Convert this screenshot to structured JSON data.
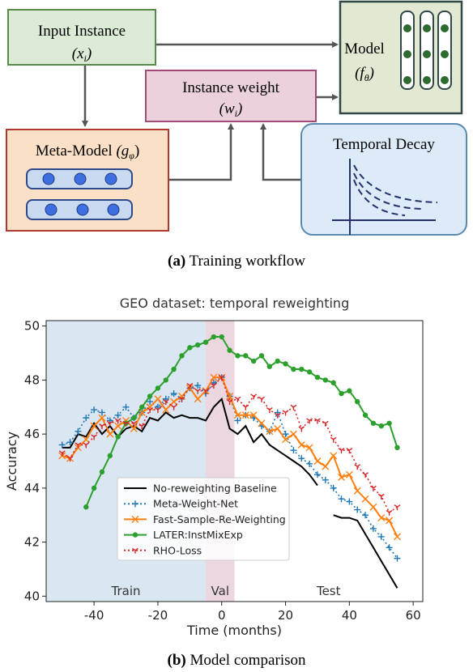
{
  "diagram": {
    "nodes": [
      {
        "label": "Input Instance",
        "math": {
          "prefix": "(x",
          "sub": "i",
          "suffix": ")"
        }
      },
      {
        "label": "Model",
        "math": {
          "prefix": "(f",
          "sub": "θ",
          "suffix": ")"
        }
      },
      {
        "label": "Instance weight",
        "math": {
          "prefix": "(w",
          "sub": "i",
          "suffix": ")"
        }
      },
      {
        "label": "Meta-Model",
        "math": {
          "prefix": "(g",
          "sub": "φ",
          "suffix": ")"
        }
      },
      {
        "label": "Temporal Decay"
      }
    ],
    "caption": {
      "tag": "(a)",
      "text": "Training workflow"
    }
  },
  "chart_data": {
    "type": "line",
    "title": "GEO dataset: temporal reweighting",
    "x_label": "Time (months)",
    "y_label": "Accuracy",
    "xlim": [
      -55,
      63
    ],
    "ylim": [
      39.8,
      50.2
    ],
    "xticks": [
      -40,
      -20,
      0,
      20,
      40,
      60
    ],
    "yticks": [
      40,
      42,
      44,
      46,
      48,
      50
    ],
    "regions": [
      {
        "label": "Train",
        "start": -55,
        "end": -5,
        "color": "#dae6f2"
      },
      {
        "label": "Val",
        "start": -5,
        "end": 4,
        "color": "#ecd6e0"
      },
      {
        "label": "Test",
        "start": 4,
        "end": 63,
        "color": "#ffffff"
      }
    ],
    "x": [
      -50,
      -47.5,
      -45,
      -42.5,
      -40,
      -37.5,
      -35,
      -32.5,
      -30,
      -27.5,
      -25,
      -22.5,
      -20,
      -17.5,
      -15,
      -12.5,
      -10,
      -7.5,
      -5,
      -2.5,
      0,
      2.5,
      5,
      7.5,
      10,
      12.5,
      15,
      17.5,
      20,
      22.5,
      25,
      27.5,
      30,
      32.5,
      35,
      37.5,
      40,
      42.5,
      45,
      47.5,
      50,
      52.5,
      55
    ],
    "series": [
      {
        "name": "No-reweighting Baseline",
        "color": "#000000",
        "dash": "solid",
        "marker": "none",
        "values": [
          45.5,
          45.5,
          46.0,
          45.9,
          46.4,
          46.0,
          46.3,
          45.9,
          46.2,
          46.3,
          46.1,
          46.6,
          46.5,
          46.8,
          46.6,
          46.7,
          46.6,
          46.6,
          46.5,
          47.0,
          47.3,
          46.2,
          46.0,
          46.3,
          45.7,
          46.0,
          45.6,
          45.4,
          45.2,
          45.0,
          44.8,
          44.5,
          44.1,
          null,
          43.0,
          42.9,
          42.9,
          42.8,
          42.3,
          41.8,
          41.3,
          40.8,
          40.3
        ]
      },
      {
        "name": "Meta-Weight-Net",
        "color": "#1f77b4",
        "dash": "dotted",
        "marker": "plus",
        "values": [
          45.6,
          45.7,
          46.1,
          46.6,
          46.9,
          46.8,
          46.5,
          46.7,
          47.0,
          46.6,
          46.8,
          47.2,
          47.0,
          47.3,
          47.5,
          47.3,
          47.7,
          47.8,
          47.5,
          47.9,
          48.1,
          47.4,
          46.5,
          46.7,
          46.6,
          46.3,
          46.1,
          46.8,
          46.0,
          45.4,
          45.1,
          44.9,
          44.5,
          44.3,
          44.0,
          43.6,
          43.5,
          43.2,
          43.0,
          42.5,
          42.2,
          41.8,
          41.4
        ]
      },
      {
        "name": "Fast-Sample-Re-Weighting",
        "color": "#ff7f0e",
        "dash": "solid",
        "marker": "x",
        "values": [
          45.2,
          45.1,
          45.5,
          45.8,
          46.3,
          46.6,
          46.0,
          46.3,
          46.5,
          46.2,
          46.8,
          47.0,
          47.3,
          46.9,
          47.2,
          47.4,
          47.7,
          47.3,
          47.6,
          48.1,
          48.1,
          47.4,
          46.7,
          46.7,
          46.7,
          46.4,
          46.1,
          46.2,
          45.8,
          46.0,
          45.6,
          45.5,
          45.0,
          44.8,
          45.2,
          44.4,
          44.5,
          43.9,
          43.6,
          43.3,
          42.9,
          42.8,
          42.2
        ]
      },
      {
        "name": "LATER:InstMixExp",
        "color": "#2ca02c",
        "dash": "solid",
        "marker": "circle",
        "values": [
          null,
          null,
          null,
          43.3,
          44.0,
          44.6,
          45.2,
          45.9,
          46.4,
          46.6,
          47.0,
          47.4,
          47.7,
          48.0,
          48.4,
          48.9,
          49.2,
          49.3,
          49.4,
          49.6,
          49.6,
          49.1,
          48.9,
          48.9,
          48.7,
          48.9,
          48.5,
          48.7,
          48.6,
          48.4,
          48.4,
          48.3,
          48.1,
          48.0,
          47.9,
          47.5,
          47.6,
          47.2,
          46.7,
          46.4,
          46.3,
          46.4,
          45.5
        ]
      },
      {
        "name": "RHO-Loss",
        "color": "#d62728",
        "dash": "dotted",
        "marker": "tri_down",
        "values": [
          45.3,
          45.1,
          45.6,
          45.6,
          45.9,
          46.3,
          46.4,
          46.5,
          46.4,
          46.4,
          46.3,
          46.9,
          46.9,
          47.2,
          47.0,
          47.3,
          47.8,
          47.6,
          47.6,
          47.8,
          48.1,
          47.2,
          47.3,
          47.0,
          47.4,
          47.3,
          46.9,
          46.7,
          46.8,
          47.0,
          46.2,
          46.5,
          46.5,
          46.4,
          45.8,
          45.4,
          45.4,
          44.8,
          44.5,
          44.0,
          43.7,
          43.1,
          43.3
        ]
      }
    ],
    "caption": {
      "tag": "(b)",
      "text": "Model comparison"
    }
  }
}
